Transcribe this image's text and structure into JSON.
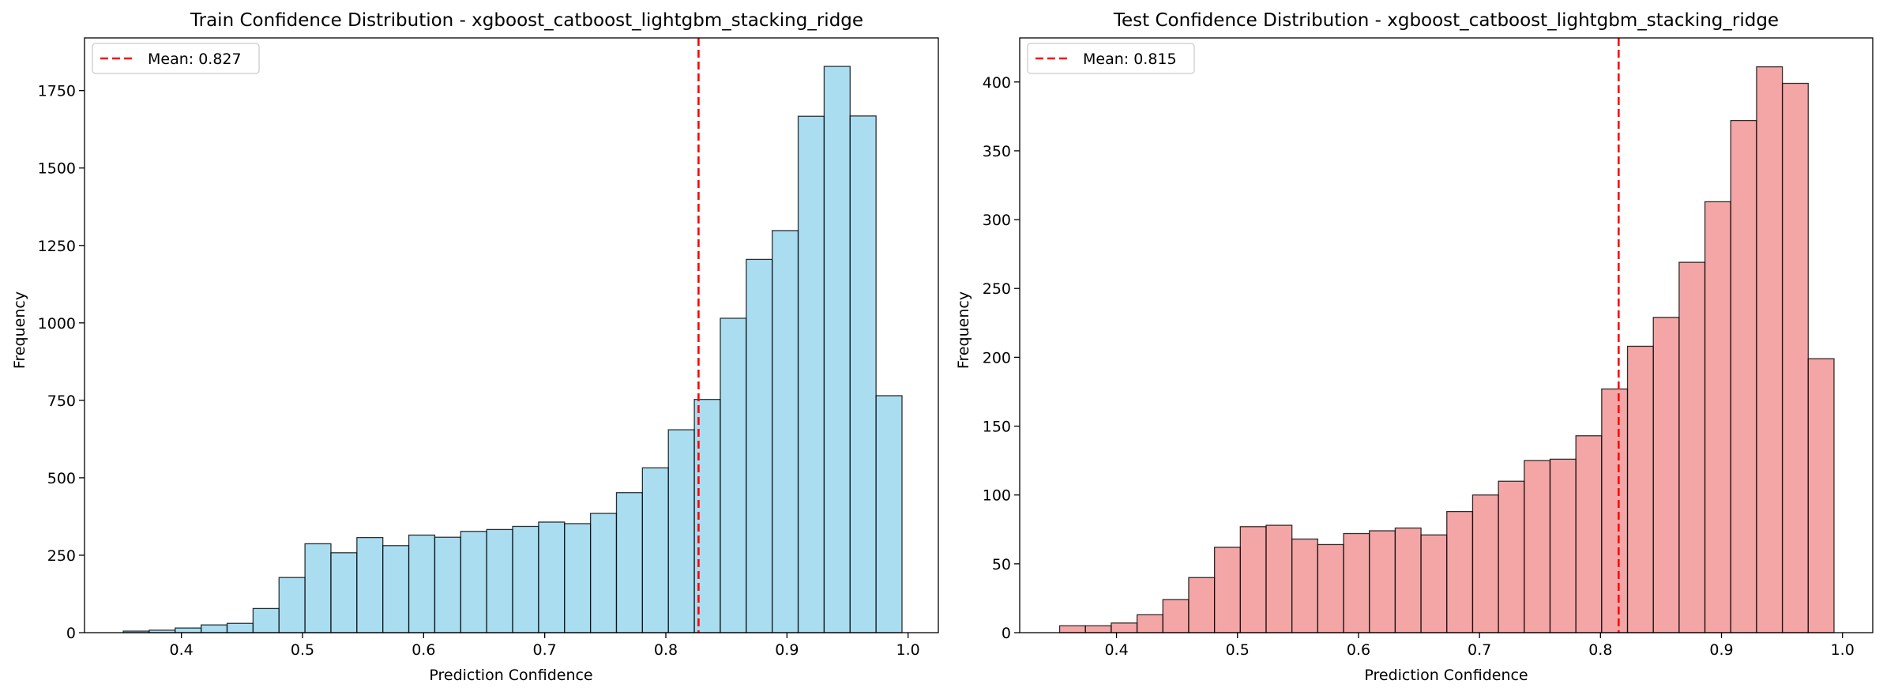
{
  "chart_data": [
    {
      "type": "bar",
      "title": "Train Confidence Distribution - xgboost_catboost_lightgbm_stacking_ridge",
      "xlabel": "Prediction Confidence",
      "ylabel": "Frequency",
      "xlim": [
        0.32,
        1.025
      ],
      "ylim": [
        0,
        1920
      ],
      "xticks": [
        "0.4",
        "0.5",
        "0.6",
        "0.7",
        "0.8",
        "0.9",
        "1.0"
      ],
      "yticks": [
        "0",
        "250",
        "500",
        "750",
        "1000",
        "1250",
        "1500",
        "1750"
      ],
      "bin_start": 0.352,
      "bin_end": 0.995,
      "bar_color": "#87CEEB",
      "bar_alpha": 0.7,
      "edge_color": "#000000",
      "values": [
        5,
        8,
        15,
        25,
        30,
        78,
        178,
        287,
        258,
        307,
        281,
        315,
        308,
        327,
        333,
        343,
        357,
        352,
        385,
        452,
        532,
        655,
        753,
        1015,
        1205,
        1298,
        1667,
        1828,
        1668,
        765
      ],
      "mean": 0.827,
      "mean_label": "Mean: 0.827",
      "mean_color": "#FF0000",
      "legend_position": "top-left",
      "grid": false
    },
    {
      "type": "bar",
      "title": "Test Confidence Distribution - xgboost_catboost_lightgbm_stacking_ridge",
      "xlabel": "Prediction Confidence",
      "ylabel": "Frequency",
      "xlim": [
        0.32,
        1.025
      ],
      "ylim": [
        0,
        432
      ],
      "xticks": [
        "0.4",
        "0.5",
        "0.6",
        "0.7",
        "0.8",
        "0.9",
        "1.0"
      ],
      "yticks": [
        "0",
        "50",
        "100",
        "150",
        "200",
        "250",
        "300",
        "350",
        "400"
      ],
      "bin_start": 0.353,
      "bin_end": 0.993,
      "bar_color": "#F08080",
      "bar_alpha": 0.7,
      "edge_color": "#000000",
      "values": [
        5,
        5,
        7,
        13,
        24,
        40,
        62,
        77,
        78,
        68,
        64,
        72,
        74,
        76,
        71,
        88,
        100,
        110,
        125,
        126,
        143,
        177,
        208,
        229,
        269,
        313,
        372,
        411,
        399,
        199
      ],
      "mean": 0.815,
      "mean_label": "Mean: 0.815",
      "mean_color": "#FF0000",
      "legend_position": "top-left",
      "grid": false
    }
  ]
}
